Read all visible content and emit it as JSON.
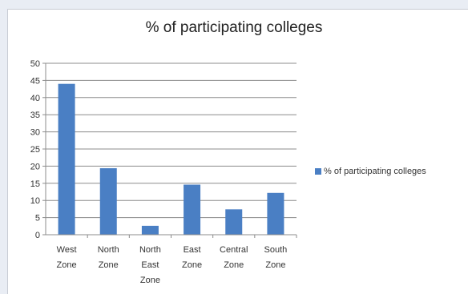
{
  "chart_data": {
    "type": "bar",
    "title": "% of participating colleges",
    "categories": [
      [
        "West",
        "Zone"
      ],
      [
        "North",
        "Zone"
      ],
      [
        "North",
        "East",
        "Zone"
      ],
      [
        "East",
        "Zone"
      ],
      [
        "Central",
        "Zone"
      ],
      [
        "South",
        "Zone"
      ]
    ],
    "series": [
      {
        "name": "% of participating colleges",
        "values": [
          44,
          19.4,
          2.6,
          14.6,
          7.4,
          12.2
        ],
        "color": "#4a7fc4"
      }
    ],
    "ylim": [
      0,
      50
    ],
    "yticks": [
      0,
      5,
      10,
      15,
      20,
      25,
      30,
      35,
      40,
      45,
      50
    ],
    "grid": true,
    "legend": "right"
  }
}
